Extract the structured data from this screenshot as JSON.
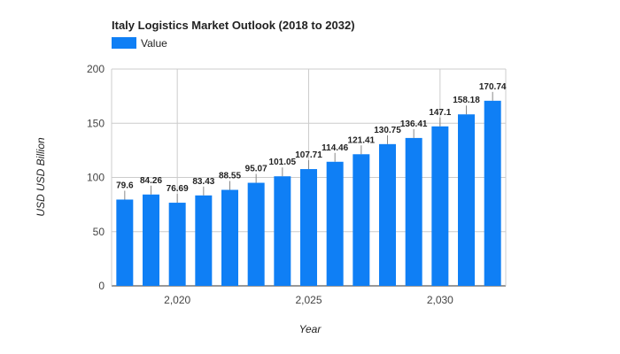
{
  "chart_data": {
    "type": "bar",
    "title": "Italy Logistics Market Outlook (2018 to 2032)",
    "xlabel": "Year",
    "ylabel": "USD USD Billion",
    "x": [
      2018,
      2019,
      2020,
      2021,
      2022,
      2023,
      2024,
      2025,
      2026,
      2027,
      2028,
      2029,
      2030,
      2031,
      2032
    ],
    "series": [
      {
        "name": "Value",
        "color": "#0f7ff5",
        "values": [
          79.6,
          84.26,
          76.69,
          83.43,
          88.55,
          95.07,
          101.05,
          107.71,
          114.46,
          121.41,
          130.75,
          136.41,
          147.1,
          158.18,
          170.74
        ],
        "labels": [
          "79.6",
          "84.26",
          "76.69",
          "83.43",
          "88.55",
          "95.07",
          "101.05",
          "107.71",
          "114.46",
          "121.41",
          "130.75",
          "136.41",
          "147.1",
          "158.18",
          "170.74"
        ]
      }
    ],
    "ylim": [
      0,
      200
    ],
    "xlim": [
      2017.5,
      2032.5
    ],
    "yticks": [
      0,
      50,
      100,
      150,
      200
    ],
    "ytick_labels": [
      "0",
      "50",
      "100",
      "150",
      "200"
    ],
    "xticks": [
      2020,
      2025,
      2030
    ],
    "xtick_labels": [
      "2,020",
      "2,025",
      "2,030"
    ],
    "grid": true,
    "legend_position": "top-left"
  }
}
